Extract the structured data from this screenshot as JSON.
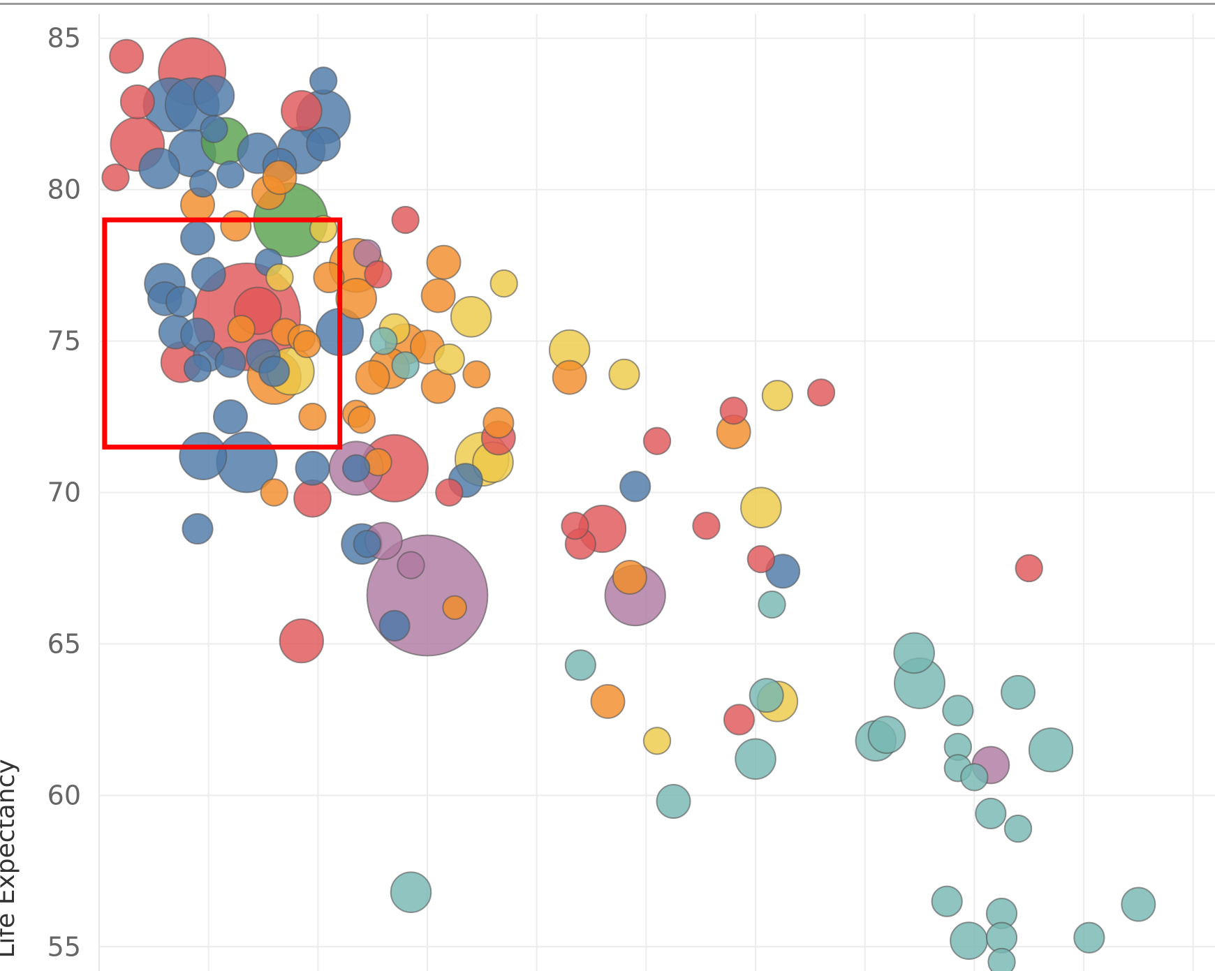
{
  "chart_data": {
    "type": "scatter",
    "ylabel": "Life Expectancy",
    "ylim": [
      54.2,
      85.8
    ],
    "yticks": [
      "85",
      "80",
      "75",
      "70",
      "65",
      "60",
      "55"
    ],
    "grid": true,
    "highlight_box": {
      "x_range": [
        0.05,
        2.2
      ],
      "y_range": [
        71.5,
        79
      ]
    },
    "palette": {
      "red": "#e15759",
      "blue": "#4e79a7",
      "orange": "#f28e2b",
      "yellow": "#edc948",
      "green": "#59a14f",
      "teal": "#76b7b2",
      "purple": "#b07aa1"
    },
    "points": [
      {
        "x": 0.25,
        "y": 84.4,
        "r": 1.0,
        "c": "red"
      },
      {
        "x": 0.85,
        "y": 83.9,
        "r": 2.0,
        "c": "red"
      },
      {
        "x": 0.35,
        "y": 82.9,
        "r": 1.0,
        "c": "red"
      },
      {
        "x": 0.65,
        "y": 82.8,
        "r": 1.6,
        "c": "blue"
      },
      {
        "x": 0.85,
        "y": 82.8,
        "r": 1.6,
        "c": "blue"
      },
      {
        "x": 1.05,
        "y": 83.1,
        "r": 1.2,
        "c": "blue"
      },
      {
        "x": 0.35,
        "y": 81.5,
        "r": 1.6,
        "c": "red"
      },
      {
        "x": 0.85,
        "y": 81.2,
        "r": 1.4,
        "c": "blue"
      },
      {
        "x": 0.55,
        "y": 80.7,
        "r": 1.2,
        "c": "blue"
      },
      {
        "x": 0.15,
        "y": 80.4,
        "r": 0.8,
        "c": "red"
      },
      {
        "x": 1.15,
        "y": 81.6,
        "r": 1.4,
        "c": "green"
      },
      {
        "x": 1.05,
        "y": 82.0,
        "r": 0.8,
        "c": "blue"
      },
      {
        "x": 1.45,
        "y": 81.2,
        "r": 1.2,
        "c": "blue"
      },
      {
        "x": 1.65,
        "y": 80.8,
        "r": 1.0,
        "c": "blue"
      },
      {
        "x": 1.85,
        "y": 81.3,
        "r": 1.4,
        "c": "blue"
      },
      {
        "x": 2.05,
        "y": 81.5,
        "r": 1.0,
        "c": "blue"
      },
      {
        "x": 1.85,
        "y": 82.6,
        "r": 1.2,
        "c": "red"
      },
      {
        "x": 2.05,
        "y": 82.4,
        "r": 1.6,
        "c": "blue"
      },
      {
        "x": 2.05,
        "y": 83.6,
        "r": 0.8,
        "c": "blue"
      },
      {
        "x": 1.2,
        "y": 80.5,
        "r": 0.8,
        "c": "blue"
      },
      {
        "x": 0.95,
        "y": 80.2,
        "r": 0.8,
        "c": "blue"
      },
      {
        "x": 1.55,
        "y": 79.9,
        "r": 1.0,
        "c": "orange"
      },
      {
        "x": 1.65,
        "y": 80.4,
        "r": 1.0,
        "c": "orange"
      },
      {
        "x": 0.9,
        "y": 79.5,
        "r": 1.0,
        "c": "orange"
      },
      {
        "x": 1.25,
        "y": 78.8,
        "r": 0.9,
        "c": "orange"
      },
      {
        "x": 0.9,
        "y": 78.4,
        "r": 1.0,
        "c": "blue"
      },
      {
        "x": 1.75,
        "y": 79.0,
        "r": 2.2,
        "c": "green"
      },
      {
        "x": 2.05,
        "y": 78.7,
        "r": 0.8,
        "c": "yellow"
      },
      {
        "x": 2.8,
        "y": 79.0,
        "r": 0.8,
        "c": "red"
      },
      {
        "x": 2.45,
        "y": 77.9,
        "r": 0.8,
        "c": "purple"
      },
      {
        "x": 3.15,
        "y": 77.6,
        "r": 1.0,
        "c": "orange"
      },
      {
        "x": 2.35,
        "y": 77.5,
        "r": 1.6,
        "c": "orange"
      },
      {
        "x": 2.1,
        "y": 77.1,
        "r": 0.9,
        "c": "orange"
      },
      {
        "x": 2.55,
        "y": 77.2,
        "r": 0.8,
        "c": "red"
      },
      {
        "x": 1.55,
        "y": 77.6,
        "r": 0.8,
        "c": "blue"
      },
      {
        "x": 1.65,
        "y": 77.1,
        "r": 0.8,
        "c": "yellow"
      },
      {
        "x": 1.0,
        "y": 77.2,
        "r": 1.0,
        "c": "blue"
      },
      {
        "x": 0.6,
        "y": 76.9,
        "r": 1.2,
        "c": "blue"
      },
      {
        "x": 0.6,
        "y": 76.4,
        "r": 1.0,
        "c": "blue"
      },
      {
        "x": 0.75,
        "y": 76.3,
        "r": 0.9,
        "c": "blue"
      },
      {
        "x": 1.35,
        "y": 75.8,
        "r": 3.2,
        "c": "red"
      },
      {
        "x": 1.45,
        "y": 76.0,
        "r": 1.4,
        "c": "red"
      },
      {
        "x": 2.35,
        "y": 76.4,
        "r": 1.2,
        "c": "orange"
      },
      {
        "x": 3.1,
        "y": 76.5,
        "r": 1.0,
        "c": "orange"
      },
      {
        "x": 3.4,
        "y": 75.8,
        "r": 1.2,
        "c": "yellow"
      },
      {
        "x": 3.7,
        "y": 76.9,
        "r": 0.8,
        "c": "yellow"
      },
      {
        "x": 2.2,
        "y": 75.3,
        "r": 1.4,
        "c": "blue"
      },
      {
        "x": 0.7,
        "y": 75.3,
        "r": 1.0,
        "c": "blue"
      },
      {
        "x": 0.9,
        "y": 75.2,
        "r": 1.0,
        "c": "blue"
      },
      {
        "x": 1.3,
        "y": 75.4,
        "r": 0.8,
        "c": "orange"
      },
      {
        "x": 1.7,
        "y": 75.3,
        "r": 0.8,
        "c": "orange"
      },
      {
        "x": 1.85,
        "y": 75.1,
        "r": 0.8,
        "c": "orange"
      },
      {
        "x": 1.9,
        "y": 74.9,
        "r": 0.8,
        "c": "orange"
      },
      {
        "x": 2.7,
        "y": 75.4,
        "r": 0.9,
        "c": "yellow"
      },
      {
        "x": 2.6,
        "y": 75.0,
        "r": 0.8,
        "c": "teal"
      },
      {
        "x": 2.8,
        "y": 74.9,
        "r": 1.2,
        "c": "orange"
      },
      {
        "x": 3.0,
        "y": 74.8,
        "r": 1.0,
        "c": "orange"
      },
      {
        "x": 2.8,
        "y": 74.2,
        "r": 0.8,
        "c": "teal"
      },
      {
        "x": 2.65,
        "y": 74.1,
        "r": 1.2,
        "c": "orange"
      },
      {
        "x": 2.5,
        "y": 73.8,
        "r": 1.0,
        "c": "orange"
      },
      {
        "x": 3.2,
        "y": 74.4,
        "r": 0.9,
        "c": "yellow"
      },
      {
        "x": 3.45,
        "y": 73.9,
        "r": 0.8,
        "c": "orange"
      },
      {
        "x": 4.3,
        "y": 74.7,
        "r": 1.2,
        "c": "yellow"
      },
      {
        "x": 4.3,
        "y": 73.8,
        "r": 1.0,
        "c": "orange"
      },
      {
        "x": 4.8,
        "y": 73.9,
        "r": 0.9,
        "c": "yellow"
      },
      {
        "x": 0.75,
        "y": 74.3,
        "r": 1.2,
        "c": "red"
      },
      {
        "x": 0.9,
        "y": 74.1,
        "r": 0.8,
        "c": "blue"
      },
      {
        "x": 1.0,
        "y": 74.5,
        "r": 0.9,
        "c": "blue"
      },
      {
        "x": 1.2,
        "y": 74.3,
        "r": 0.9,
        "c": "blue"
      },
      {
        "x": 1.5,
        "y": 74.5,
        "r": 1.0,
        "c": "blue"
      },
      {
        "x": 1.75,
        "y": 74.0,
        "r": 1.4,
        "c": "yellow"
      },
      {
        "x": 1.6,
        "y": 73.8,
        "r": 1.6,
        "c": "orange"
      },
      {
        "x": 1.6,
        "y": 74.0,
        "r": 0.9,
        "c": "blue"
      },
      {
        "x": 3.1,
        "y": 73.5,
        "r": 1.0,
        "c": "orange"
      },
      {
        "x": 6.2,
        "y": 73.2,
        "r": 0.9,
        "c": "yellow"
      },
      {
        "x": 6.6,
        "y": 73.3,
        "r": 0.8,
        "c": "red"
      },
      {
        "x": 1.2,
        "y": 72.5,
        "r": 1.0,
        "c": "blue"
      },
      {
        "x": 1.95,
        "y": 72.5,
        "r": 0.8,
        "c": "orange"
      },
      {
        "x": 2.35,
        "y": 72.6,
        "r": 0.8,
        "c": "orange"
      },
      {
        "x": 2.4,
        "y": 72.4,
        "r": 0.8,
        "c": "orange"
      },
      {
        "x": 3.65,
        "y": 71.8,
        "r": 1.0,
        "c": "red"
      },
      {
        "x": 3.65,
        "y": 72.3,
        "r": 0.9,
        "c": "orange"
      },
      {
        "x": 5.1,
        "y": 71.7,
        "r": 0.8,
        "c": "red"
      },
      {
        "x": 5.8,
        "y": 72.7,
        "r": 0.8,
        "c": "red"
      },
      {
        "x": 5.8,
        "y": 72.0,
        "r": 1.0,
        "c": "orange"
      },
      {
        "x": 3.5,
        "y": 71.1,
        "r": 1.6,
        "c": "yellow"
      },
      {
        "x": 3.6,
        "y": 71.0,
        "r": 1.2,
        "c": "yellow"
      },
      {
        "x": 0.95,
        "y": 71.2,
        "r": 1.4,
        "c": "blue"
      },
      {
        "x": 1.35,
        "y": 71.0,
        "r": 1.8,
        "c": "blue"
      },
      {
        "x": 2.35,
        "y": 70.8,
        "r": 1.6,
        "c": "purple"
      },
      {
        "x": 2.7,
        "y": 70.8,
        "r": 2.0,
        "c": "red"
      },
      {
        "x": 2.55,
        "y": 71.0,
        "r": 0.8,
        "c": "orange"
      },
      {
        "x": 2.35,
        "y": 70.8,
        "r": 0.8,
        "c": "blue"
      },
      {
        "x": 1.95,
        "y": 70.8,
        "r": 1.0,
        "c": "blue"
      },
      {
        "x": 3.2,
        "y": 70.0,
        "r": 0.8,
        "c": "red"
      },
      {
        "x": 3.35,
        "y": 70.4,
        "r": 1.0,
        "c": "blue"
      },
      {
        "x": 4.9,
        "y": 70.2,
        "r": 0.9,
        "c": "blue"
      },
      {
        "x": 1.6,
        "y": 70.0,
        "r": 0.8,
        "c": "orange"
      },
      {
        "x": 1.95,
        "y": 69.8,
        "r": 1.1,
        "c": "red"
      },
      {
        "x": 6.05,
        "y": 69.5,
        "r": 1.2,
        "c": "yellow"
      },
      {
        "x": 0.9,
        "y": 68.8,
        "r": 0.9,
        "c": "blue"
      },
      {
        "x": 2.6,
        "y": 68.4,
        "r": 1.1,
        "c": "purple"
      },
      {
        "x": 2.4,
        "y": 68.3,
        "r": 1.2,
        "c": "blue"
      },
      {
        "x": 2.45,
        "y": 68.3,
        "r": 0.8,
        "c": "blue"
      },
      {
        "x": 4.35,
        "y": 68.9,
        "r": 0.8,
        "c": "red"
      },
      {
        "x": 4.6,
        "y": 68.8,
        "r": 1.4,
        "c": "red"
      },
      {
        "x": 4.4,
        "y": 68.3,
        "r": 0.9,
        "c": "red"
      },
      {
        "x": 5.55,
        "y": 68.9,
        "r": 0.8,
        "c": "red"
      },
      {
        "x": 3.0,
        "y": 66.6,
        "r": 3.6,
        "c": "purple"
      },
      {
        "x": 2.85,
        "y": 67.6,
        "r": 0.8,
        "c": "purple"
      },
      {
        "x": 3.25,
        "y": 66.2,
        "r": 0.7,
        "c": "orange"
      },
      {
        "x": 4.9,
        "y": 66.6,
        "r": 1.8,
        "c": "purple"
      },
      {
        "x": 4.85,
        "y": 67.2,
        "r": 1.0,
        "c": "orange"
      },
      {
        "x": 6.25,
        "y": 67.4,
        "r": 1.0,
        "c": "blue"
      },
      {
        "x": 6.05,
        "y": 67.8,
        "r": 0.8,
        "c": "red"
      },
      {
        "x": 6.15,
        "y": 66.3,
        "r": 0.8,
        "c": "teal"
      },
      {
        "x": 8.5,
        "y": 67.5,
        "r": 0.8,
        "c": "red"
      },
      {
        "x": 2.7,
        "y": 65.6,
        "r": 0.9,
        "c": "blue"
      },
      {
        "x": 1.85,
        "y": 65.1,
        "r": 1.3,
        "c": "red"
      },
      {
        "x": 4.4,
        "y": 64.3,
        "r": 0.9,
        "c": "teal"
      },
      {
        "x": 4.65,
        "y": 63.1,
        "r": 1.0,
        "c": "orange"
      },
      {
        "x": 7.45,
        "y": 64.7,
        "r": 1.2,
        "c": "teal"
      },
      {
        "x": 7.5,
        "y": 63.7,
        "r": 1.5,
        "c": "teal"
      },
      {
        "x": 6.1,
        "y": 63.3,
        "r": 1.0,
        "c": "teal"
      },
      {
        "x": 6.2,
        "y": 63.1,
        "r": 1.2,
        "c": "yellow"
      },
      {
        "x": 8.4,
        "y": 63.4,
        "r": 1.0,
        "c": "teal"
      },
      {
        "x": 7.85,
        "y": 62.8,
        "r": 0.9,
        "c": "teal"
      },
      {
        "x": 5.85,
        "y": 62.5,
        "r": 0.9,
        "c": "red"
      },
      {
        "x": 7.2,
        "y": 62.0,
        "r": 1.1,
        "c": "teal"
      },
      {
        "x": 7.1,
        "y": 61.8,
        "r": 1.2,
        "c": "teal"
      },
      {
        "x": 5.1,
        "y": 61.8,
        "r": 0.8,
        "c": "yellow"
      },
      {
        "x": 7.85,
        "y": 61.6,
        "r": 0.8,
        "c": "teal"
      },
      {
        "x": 7.85,
        "y": 60.9,
        "r": 0.8,
        "c": "teal"
      },
      {
        "x": 8.0,
        "y": 60.6,
        "r": 0.8,
        "c": "teal"
      },
      {
        "x": 8.15,
        "y": 61.0,
        "r": 1.1,
        "c": "purple"
      },
      {
        "x": 8.7,
        "y": 61.5,
        "r": 1.3,
        "c": "teal"
      },
      {
        "x": 6.0,
        "y": 61.2,
        "r": 1.2,
        "c": "teal"
      },
      {
        "x": 5.25,
        "y": 59.8,
        "r": 1.0,
        "c": "teal"
      },
      {
        "x": 8.15,
        "y": 59.4,
        "r": 0.9,
        "c": "teal"
      },
      {
        "x": 8.4,
        "y": 58.9,
        "r": 0.8,
        "c": "teal"
      },
      {
        "x": 2.85,
        "y": 56.8,
        "r": 1.2,
        "c": "teal"
      },
      {
        "x": 7.75,
        "y": 56.5,
        "r": 0.9,
        "c": "teal"
      },
      {
        "x": 8.25,
        "y": 56.1,
        "r": 0.9,
        "c": "teal"
      },
      {
        "x": 8.25,
        "y": 55.3,
        "r": 0.9,
        "c": "teal"
      },
      {
        "x": 7.95,
        "y": 55.2,
        "r": 1.1,
        "c": "teal"
      },
      {
        "x": 8.25,
        "y": 54.5,
        "r": 0.8,
        "c": "teal"
      },
      {
        "x": 9.05,
        "y": 55.3,
        "r": 0.9,
        "c": "teal"
      },
      {
        "x": 9.5,
        "y": 56.4,
        "r": 1.0,
        "c": "teal"
      }
    ]
  }
}
